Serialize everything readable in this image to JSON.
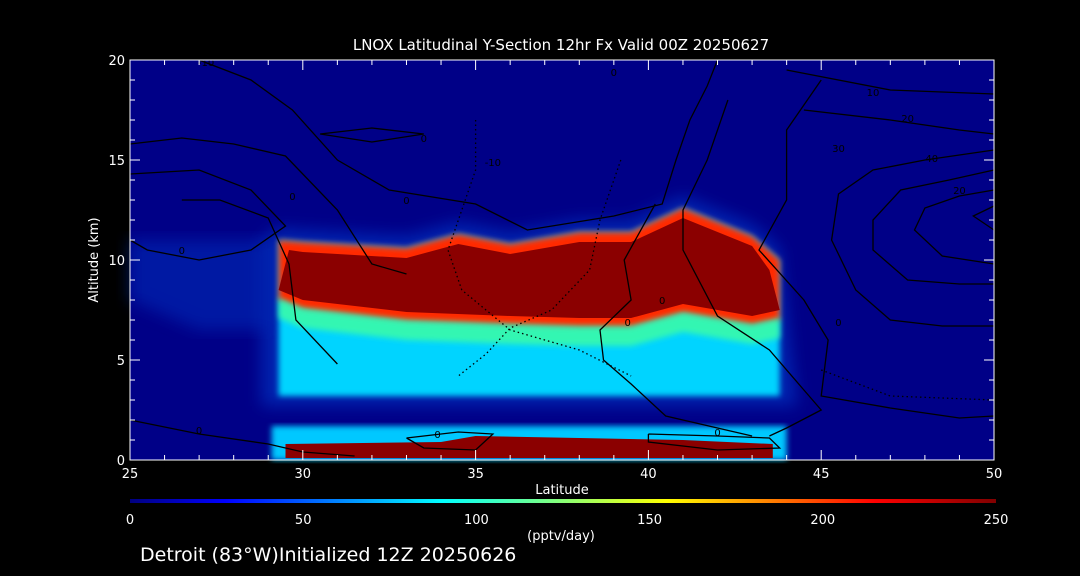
{
  "chart_data": {
    "type": "heatmap",
    "title": "LNOX Latitudinal Y-Section 12hr  Fx Valid 00Z 20250627",
    "xlabel": "Latitude",
    "ylabel": "Altitude (km)",
    "xlim": [
      25,
      50
    ],
    "ylim": [
      0,
      20
    ],
    "x_ticks": [
      "25",
      "30",
      "35",
      "40",
      "45",
      "50"
    ],
    "y_ticks": [
      "0",
      "5",
      "10",
      "15",
      "20"
    ],
    "colorbar": {
      "label": "(pptv/day)",
      "range": [
        0,
        250
      ],
      "ticks": [
        "0",
        "50",
        "100",
        "150",
        "200",
        "250"
      ]
    },
    "lnox_upper_layer": {
      "lat_start": 29.3,
      "lat_end": 43.8,
      "peak_value": 250,
      "top_km": [
        [
          29.3,
          11.0
        ],
        [
          30,
          10.9
        ],
        [
          33,
          10.6
        ],
        [
          34.5,
          11.3
        ],
        [
          36,
          10.8
        ],
        [
          38,
          11.4
        ],
        [
          39.5,
          11.4
        ],
        [
          41,
          12.6
        ],
        [
          43,
          11.2
        ],
        [
          43.8,
          10.0
        ]
      ],
      "bottom_km": [
        [
          29.3,
          8.0
        ],
        [
          30,
          7.5
        ],
        [
          33,
          6.9
        ],
        [
          36,
          6.7
        ],
        [
          38,
          6.6
        ],
        [
          39.5,
          6.6
        ],
        [
          41,
          7.3
        ],
        [
          43,
          6.7
        ],
        [
          43.8,
          7.0
        ]
      ],
      "tail_bottom_km": 3.2
    },
    "lnox_surface_layer": {
      "lat_start": 29.5,
      "lat_end": 43.6,
      "peak_value": 250,
      "top_km": 1.2,
      "bottom_km": 0.05
    },
    "contour_labels": [
      "-10",
      "0",
      "0",
      "0",
      "0",
      "-10",
      "0",
      "10",
      "20",
      "30",
      "40",
      "20",
      "0",
      "0",
      "0",
      "0",
      "0",
      "0"
    ]
  },
  "colors": {
    "background": "#000000",
    "field_background": "#000087",
    "axis": "#ffffff",
    "contour": "#000000"
  },
  "footer": {
    "text": "Detroit (83°W)Initialized 12Z 20250626"
  }
}
